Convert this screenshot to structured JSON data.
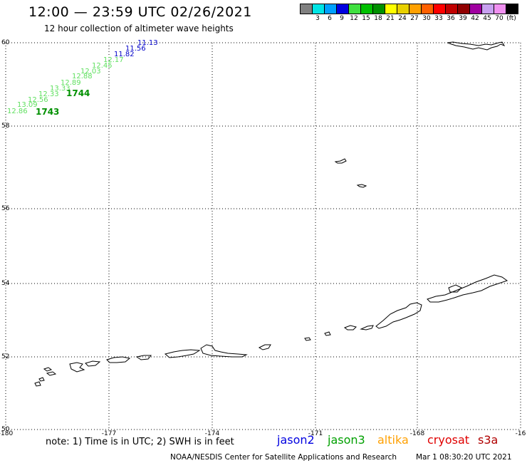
{
  "header": {
    "title": "12:00 — 23:59 UTC 02/26/2021",
    "subtitle": "12 hour collection of altimeter wave heights"
  },
  "color_scale": {
    "swatches": [
      "#808080",
      "#00e5e5",
      "#00a0ff",
      "#0000e0",
      "#40e040",
      "#00c000",
      "#009000",
      "#ffff00",
      "#e8d000",
      "#ffa000",
      "#ff6000",
      "#ff0000",
      "#c00000",
      "#900000",
      "#a000a0",
      "#c8a0f0",
      "#f090f0",
      "#000000"
    ],
    "labels": [
      "3",
      "6",
      "9",
      "12",
      "15",
      "18",
      "21",
      "24",
      "27",
      "30",
      "33",
      "36",
      "39",
      "42",
      "45",
      "70",
      "(ft)"
    ]
  },
  "map": {
    "lat_labels": [
      "60",
      "58",
      "56",
      "54",
      "52",
      "50"
    ],
    "lon_labels": [
      "-180",
      "-177",
      "-174",
      "-171",
      "-168",
      "-16"
    ],
    "observations": [
      {
        "text": "11.13",
        "color": "#0000c8"
      },
      {
        "text": "11.56",
        "color": "#0000c8"
      },
      {
        "text": "11.82",
        "color": "#0000c8"
      },
      {
        "text": "12.17",
        "color": "#60e060"
      },
      {
        "text": "12.45",
        "color": "#60e060"
      },
      {
        "text": "12.03",
        "color": "#60e060"
      },
      {
        "text": "12.88",
        "color": "#60e060"
      },
      {
        "text": "12.89",
        "color": "#60e060"
      },
      {
        "text": "13.33",
        "color": "#60e060"
      },
      {
        "text": "12.33",
        "color": "#60e060"
      },
      {
        "text": "12.56",
        "color": "#60e060"
      },
      {
        "text": "13.09",
        "color": "#60e060"
      },
      {
        "text": "12.86",
        "color": "#60e060"
      }
    ],
    "time_labels": [
      {
        "text": "1744",
        "color": "#009000"
      },
      {
        "text": "1743",
        "color": "#009000"
      }
    ]
  },
  "footer": {
    "note": "note: 1) Time is in UTC; 2) SWH is in feet",
    "missions": [
      {
        "text": "jason2",
        "color": "#0000e0"
      },
      {
        "text": "jason3",
        "color": "#00a000"
      },
      {
        "text": "altika",
        "color": "#ffa000"
      },
      {
        "text": "cryosat",
        "color": "#e00000"
      },
      {
        "text": "s3a",
        "color": "#b00000"
      }
    ],
    "credit": "NOAA/NESDIS Center for Satellite Applications and Research",
    "datetime": "Mar  1 08:30:20 UTC 2021"
  }
}
